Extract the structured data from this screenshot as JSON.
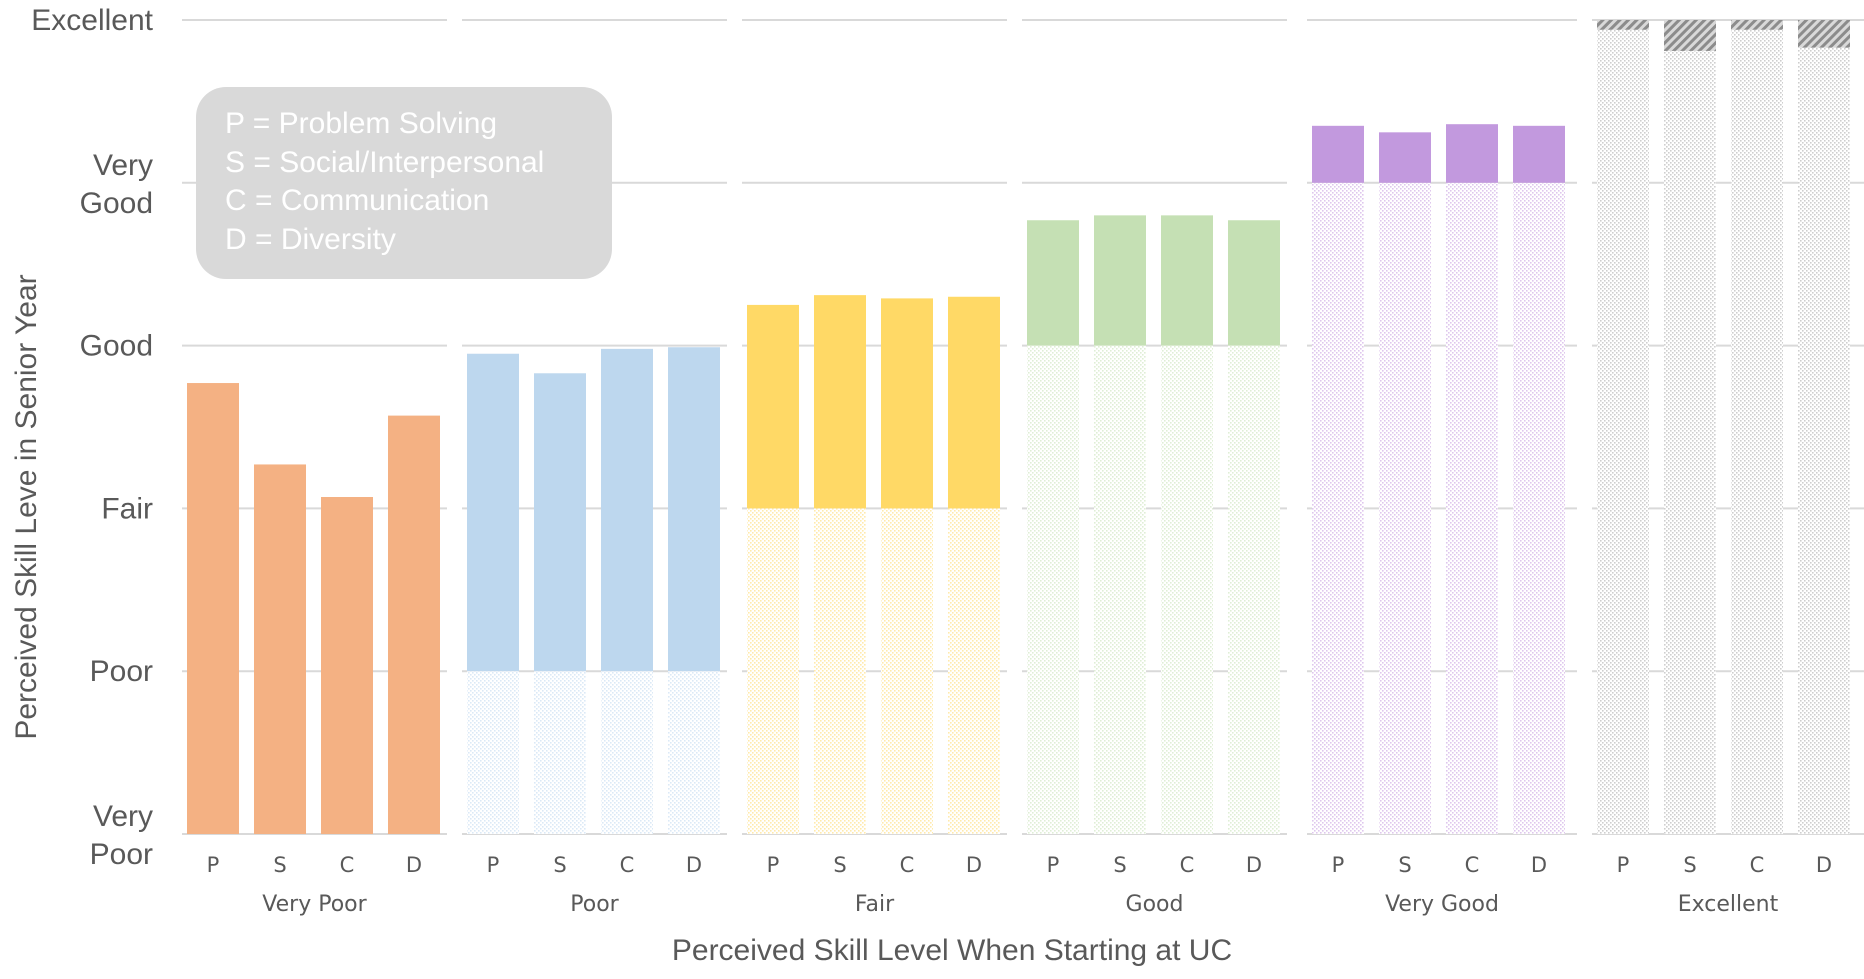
{
  "chart_data": {
    "type": "bar",
    "ylabel": "Perceived Skill Leve in Senior Year",
    "xlabel": "Perceived Skill Level When Starting at UC",
    "y_levels": [
      {
        "value": 0,
        "lines": [
          "Very",
          "Poor"
        ]
      },
      {
        "value": 1,
        "lines": [
          "Poor"
        ]
      },
      {
        "value": 2,
        "lines": [
          "Fair"
        ]
      },
      {
        "value": 3,
        "lines": [
          "Good"
        ]
      },
      {
        "value": 4,
        "lines": [
          "Very",
          "Good"
        ]
      },
      {
        "value": 5,
        "lines": [
          "Excellent"
        ]
      }
    ],
    "ylim": [
      0,
      5
    ],
    "grid": true,
    "bar_labels": [
      "P",
      "S",
      "C",
      "D"
    ],
    "groups": [
      {
        "name": "Very Poor",
        "start": 0,
        "color": "#f4b183",
        "values": [
          2.77,
          2.27,
          2.07,
          2.57
        ]
      },
      {
        "name": "Poor",
        "start": 1,
        "color": "#bdd7ee",
        "values": [
          2.95,
          2.83,
          2.98,
          2.99
        ]
      },
      {
        "name": "Fair",
        "start": 2,
        "color": "#ffd966",
        "values": [
          3.25,
          3.31,
          3.29,
          3.3
        ]
      },
      {
        "name": "Good",
        "start": 3,
        "color": "#c5e0b4",
        "values": [
          3.77,
          3.8,
          3.8,
          3.77
        ]
      },
      {
        "name": "Very Good",
        "start": 4,
        "color": "#c299de",
        "values": [
          4.35,
          4.31,
          4.36,
          4.35
        ]
      },
      {
        "name": "Excellent",
        "start": 5,
        "color": "#a6a6a6",
        "values": [
          4.94,
          4.81,
          4.94,
          4.83
        ]
      }
    ]
  },
  "legend": {
    "items": [
      "P = Problem Solving",
      "S = Social/Interpersonal",
      "C = Communication",
      "D = Diversity"
    ],
    "background": "#d9d9d9"
  }
}
